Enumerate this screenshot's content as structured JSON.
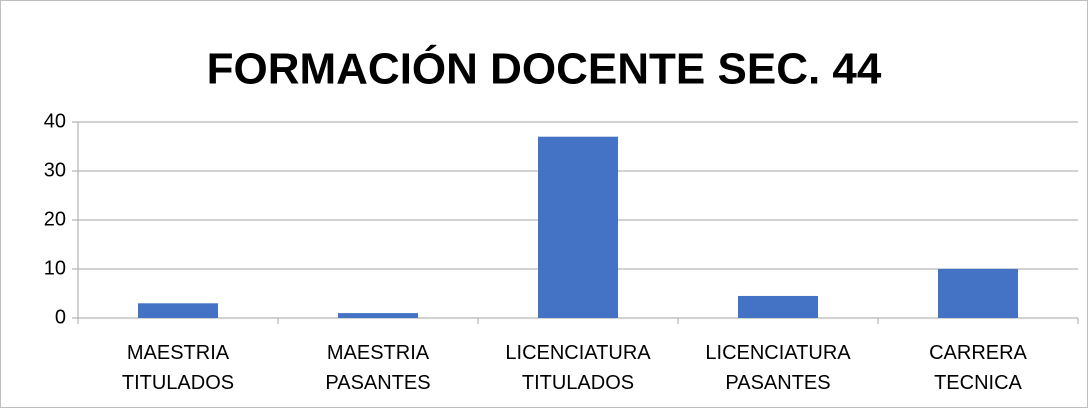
{
  "chart_data": {
    "type": "bar",
    "title": "FORMACIÓN DOCENTE SEC. 44",
    "categories": [
      "MAESTRIA TITULADOS",
      "MAESTRIA PASANTES",
      "LICENCIATURA TITULADOS",
      "LICENCIATURA PASANTES",
      "CARRERA TECNICA"
    ],
    "values": [
      3,
      1,
      37,
      4.5,
      10
    ],
    "color": "#4472c4",
    "ylim": [
      0,
      40
    ],
    "yticks": [
      0,
      10,
      20,
      30,
      40
    ],
    "grid": true
  }
}
